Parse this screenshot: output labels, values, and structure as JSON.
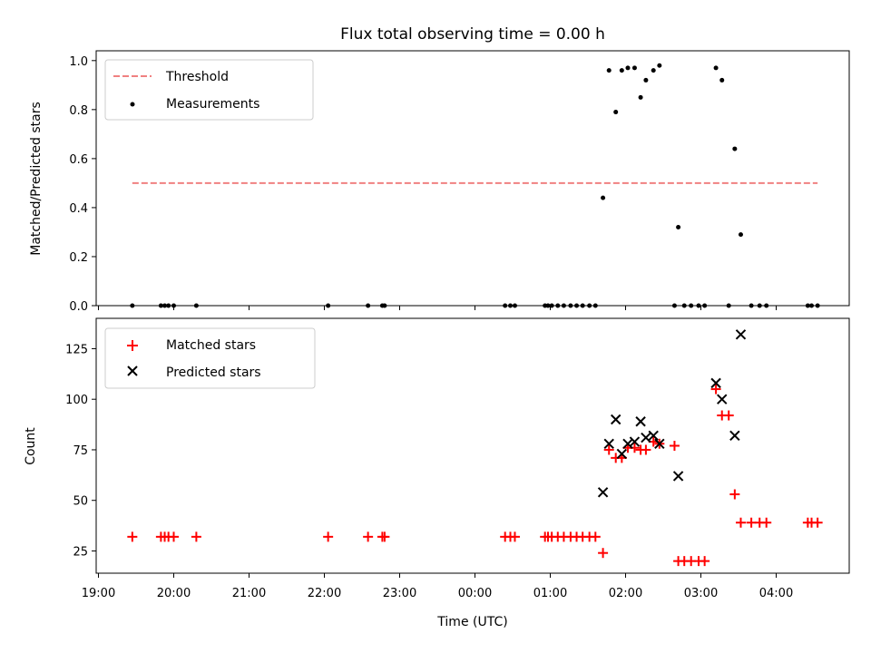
{
  "chart_data": [
    {
      "type": "scatter",
      "title": "Flux total observing time = 0.00 h",
      "xlabel": "",
      "ylabel": "Matched/Predicted stars",
      "xlim": [
        18.97,
        28.97
      ],
      "ylim": [
        0,
        1.04
      ],
      "yticks": [
        0.0,
        0.2,
        0.4,
        0.6,
        0.8,
        1.0
      ],
      "ytick_labels": [
        "0.0",
        "0.2",
        "0.4",
        "0.6",
        "0.8",
        "1.0"
      ],
      "legend": {
        "placement": "upper-left",
        "entries": [
          "Threshold",
          "Measurements"
        ]
      },
      "threshold": {
        "name": "Threshold",
        "value": 0.5,
        "x_range": [
          19.45,
          28.55
        ],
        "color": "#f08080"
      },
      "measurements": {
        "name": "Measurements",
        "color": "#000000",
        "x": [
          19.45,
          19.83,
          19.88,
          19.93,
          20.0,
          20.3,
          22.05,
          22.58,
          22.77,
          22.8,
          24.4,
          24.47,
          24.53,
          24.93,
          24.97,
          25.02,
          25.1,
          25.18,
          25.27,
          25.35,
          25.43,
          25.52,
          25.6,
          25.7,
          25.78,
          25.87,
          25.95,
          26.03,
          26.12,
          26.2,
          26.27,
          26.37,
          26.45,
          26.65,
          26.7,
          26.78,
          26.87,
          26.97,
          27.05,
          27.2,
          27.28,
          27.37,
          27.45,
          27.53,
          27.67,
          27.78,
          27.87,
          28.42,
          28.47,
          28.55
        ],
        "y": [
          0,
          0,
          0,
          0,
          0,
          0,
          0,
          0,
          0,
          0,
          0,
          0,
          0,
          0,
          0,
          0,
          0,
          0,
          0,
          0,
          0,
          0,
          0,
          0.44,
          0.96,
          0.79,
          0.96,
          0.97,
          0.97,
          0.85,
          0.92,
          0.96,
          0.98,
          0,
          0.32,
          0,
          0,
          0,
          0,
          0.97,
          0.92,
          0,
          0.64,
          0.29,
          0,
          0,
          0,
          0,
          0,
          0
        ]
      }
    },
    {
      "type": "scatter",
      "title": "",
      "xlabel": "Time (UTC)",
      "ylabel": "Count",
      "xlim": [
        18.97,
        28.97
      ],
      "ylim": [
        14,
        140
      ],
      "yticks": [
        25,
        50,
        75,
        100,
        125
      ],
      "ytick_labels": [
        "25",
        "50",
        "75",
        "100",
        "125"
      ],
      "xticks": [
        19,
        20,
        21,
        22,
        23,
        24,
        25,
        26,
        27,
        28
      ],
      "xtick_labels": [
        "19:00",
        "20:00",
        "21:00",
        "22:00",
        "23:00",
        "00:00",
        "01:00",
        "02:00",
        "03:00",
        "04:00"
      ],
      "legend": {
        "placement": "upper-left",
        "entries": [
          "Matched stars",
          "Predicted stars"
        ]
      },
      "series": [
        {
          "name": "Matched stars",
          "marker": "plus",
          "color": "#ff0000",
          "x": [
            19.45,
            19.83,
            19.88,
            19.93,
            20.0,
            20.3,
            22.05,
            22.58,
            22.77,
            22.8,
            24.4,
            24.47,
            24.53,
            24.93,
            24.97,
            25.02,
            25.1,
            25.18,
            25.27,
            25.35,
            25.43,
            25.52,
            25.6,
            25.7,
            25.78,
            25.87,
            25.95,
            26.03,
            26.12,
            26.2,
            26.27,
            26.37,
            26.45,
            26.65,
            26.7,
            26.78,
            26.87,
            26.97,
            27.05,
            27.2,
            27.28,
            27.37,
            27.45,
            27.53,
            27.67,
            27.78,
            27.87,
            28.42,
            28.47,
            28.55
          ],
          "y": [
            32,
            32,
            32,
            32,
            32,
            32,
            32,
            32,
            32,
            32,
            32,
            32,
            32,
            32,
            32,
            32,
            32,
            32,
            32,
            32,
            32,
            32,
            32,
            24,
            75,
            71,
            71,
            76,
            76,
            75,
            75,
            79,
            78,
            77,
            20,
            20,
            20,
            20,
            20,
            105,
            92,
            92,
            53,
            39,
            39,
            39,
            39,
            39,
            39,
            39
          ]
        },
        {
          "name": "Predicted stars",
          "marker": "x",
          "color": "#000000",
          "x": [
            25.7,
            25.78,
            25.87,
            25.95,
            26.03,
            26.12,
            26.2,
            26.27,
            26.37,
            26.45,
            26.7,
            27.2,
            27.28,
            27.45,
            27.53
          ],
          "y": [
            54,
            78,
            90,
            73,
            78,
            79,
            89,
            81,
            82,
            78,
            62,
            108,
            100,
            82,
            132
          ]
        }
      ]
    }
  ]
}
